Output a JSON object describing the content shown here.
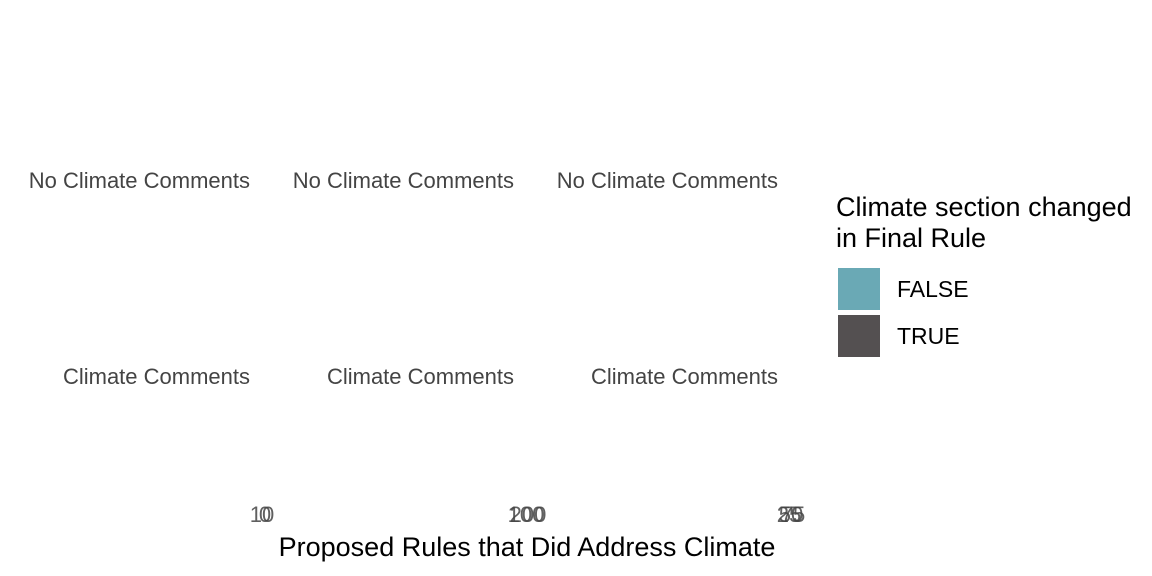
{
  "chart_data": {
    "type": "bar",
    "xlabel": "Proposed Rules that Did Address Climate",
    "facet_rows": [
      "No Climate Comments",
      "Climate Comments"
    ],
    "panels": [
      {
        "x_ticks": [
          "10",
          "0"
        ]
      },
      {
        "x_ticks": [
          "100",
          "200"
        ]
      },
      {
        "x_ticks": [
          "25",
          "50",
          "75"
        ]
      }
    ],
    "legend": {
      "title": "Climate section changed\nin Final Rule",
      "items": [
        {
          "label": "FALSE",
          "color": "#6aa9b5"
        },
        {
          "label": "TRUE",
          "color": "#545051"
        }
      ]
    },
    "series": []
  }
}
